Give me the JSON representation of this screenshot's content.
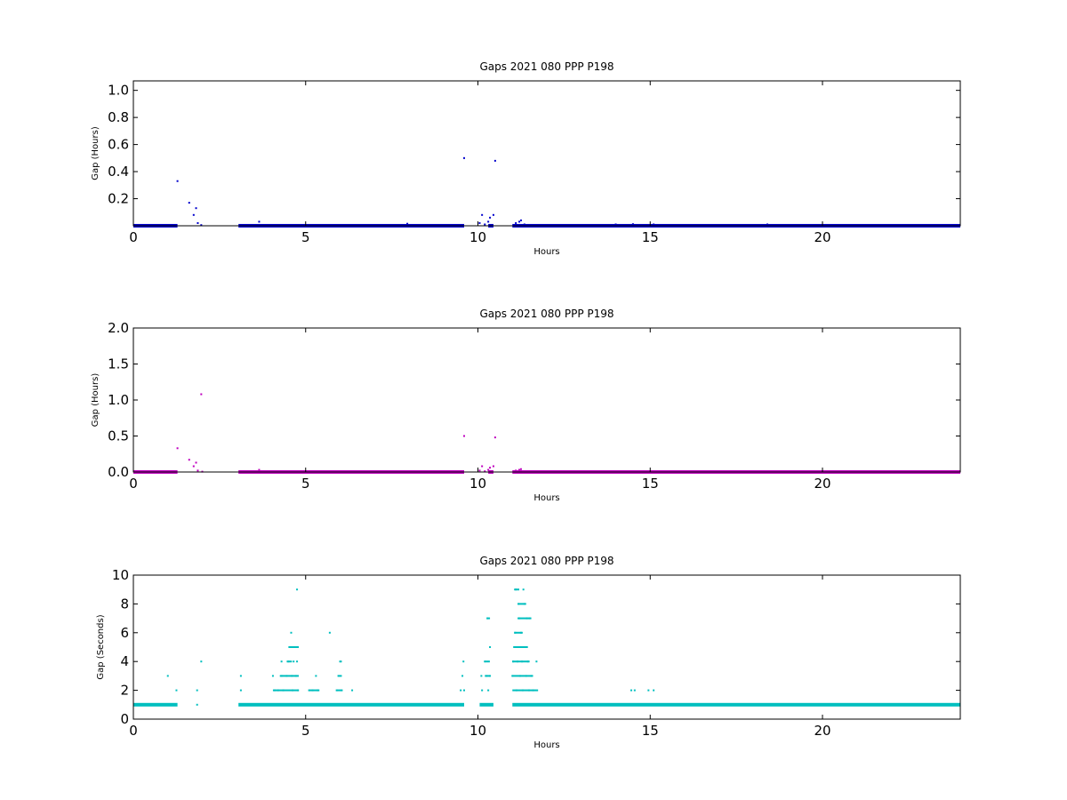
{
  "chart_data": [
    {
      "type": "scatter",
      "title": "Gaps 2021 080 PPP  P198",
      "xlabel": "Hours",
      "ylabel": "Gap (Hours)",
      "xlim": [
        0,
        24
      ],
      "ylim": [
        0,
        1.07
      ],
      "x_ticks": [
        "0",
        "5",
        "10",
        "15",
        "20"
      ],
      "y_ticks": [
        "0.2",
        "0.4",
        "0.6",
        "0.8",
        "1.0"
      ],
      "color": "#0000cc",
      "baseline_y": 0.0003,
      "baseline_segments": [
        [
          0,
          1.28
        ],
        [
          3.05,
          9.6
        ],
        [
          10.3,
          10.45
        ],
        [
          11.0,
          24
        ]
      ],
      "points": [
        {
          "x": 1.28,
          "y": 0.33
        },
        {
          "x": 1.62,
          "y": 0.17
        },
        {
          "x": 1.75,
          "y": 0.08
        },
        {
          "x": 1.82,
          "y": 0.13
        },
        {
          "x": 1.87,
          "y": 0.02
        },
        {
          "x": 1.97,
          "y": 0.005
        },
        {
          "x": 3.65,
          "y": 0.03
        },
        {
          "x": 7.95,
          "y": 0.015
        },
        {
          "x": 9.6,
          "y": 0.5
        },
        {
          "x": 10.05,
          "y": 0.02
        },
        {
          "x": 10.12,
          "y": 0.08
        },
        {
          "x": 10.2,
          "y": 0.01
        },
        {
          "x": 10.3,
          "y": 0.03
        },
        {
          "x": 10.35,
          "y": 0.06
        },
        {
          "x": 10.45,
          "y": 0.08
        },
        {
          "x": 10.5,
          "y": 0.48
        },
        {
          "x": 11.1,
          "y": 0.02
        },
        {
          "x": 11.2,
          "y": 0.03
        },
        {
          "x": 11.25,
          "y": 0.04
        },
        {
          "x": 11.35,
          "y": 0.01
        },
        {
          "x": 14.0,
          "y": 0.01
        },
        {
          "x": 14.5,
          "y": 0.012
        },
        {
          "x": 15.1,
          "y": 0.01
        },
        {
          "x": 18.4,
          "y": 0.01
        }
      ]
    },
    {
      "type": "scatter",
      "title": "Gaps 2021 080 PPP  P198",
      "xlabel": "Hours",
      "ylabel": "Gap (Hours)",
      "xlim": [
        0,
        24
      ],
      "ylim": [
        0,
        2.0
      ],
      "x_ticks": [
        "0",
        "5",
        "10",
        "15",
        "20"
      ],
      "y_ticks": [
        "0.0",
        "0.5",
        "1.0",
        "1.5",
        "2.0"
      ],
      "color": "#bf00bf",
      "baseline_y": 0.0003,
      "baseline_segments": [
        [
          0,
          1.28
        ],
        [
          3.05,
          9.6
        ],
        [
          10.3,
          10.45
        ],
        [
          11.0,
          24
        ]
      ],
      "points": [
        {
          "x": 1.28,
          "y": 0.33
        },
        {
          "x": 1.62,
          "y": 0.17
        },
        {
          "x": 1.75,
          "y": 0.08
        },
        {
          "x": 1.82,
          "y": 0.13
        },
        {
          "x": 1.87,
          "y": 0.02
        },
        {
          "x": 1.97,
          "y": 1.08
        },
        {
          "x": 2.0,
          "y": 0.005
        },
        {
          "x": 3.65,
          "y": 0.03
        },
        {
          "x": 9.6,
          "y": 0.5
        },
        {
          "x": 10.05,
          "y": 0.02
        },
        {
          "x": 10.12,
          "y": 0.08
        },
        {
          "x": 10.2,
          "y": 0.01
        },
        {
          "x": 10.3,
          "y": 0.03
        },
        {
          "x": 10.35,
          "y": 0.06
        },
        {
          "x": 10.45,
          "y": 0.08
        },
        {
          "x": 10.5,
          "y": 0.48
        },
        {
          "x": 11.1,
          "y": 0.02
        },
        {
          "x": 11.2,
          "y": 0.03
        },
        {
          "x": 11.25,
          "y": 0.04
        }
      ]
    },
    {
      "type": "scatter",
      "title": "Gaps 2021 080 PPP  P198",
      "xlabel": "Hours",
      "ylabel": "Gap (Seconds)",
      "xlim": [
        0,
        24
      ],
      "ylim": [
        0,
        10
      ],
      "x_ticks": [
        "0",
        "5",
        "10",
        "15",
        "20"
      ],
      "y_ticks": [
        "0",
        "2",
        "4",
        "6",
        "8",
        "10"
      ],
      "color": "#00bfbf",
      "baseline_y": 1,
      "baseline_segments": [
        [
          0,
          1.28
        ],
        [
          3.05,
          9.6
        ],
        [
          10.05,
          10.45
        ],
        [
          11.0,
          24
        ]
      ],
      "points": [
        {
          "x": 1.0,
          "y": 3
        },
        {
          "x": 1.25,
          "y": 2
        },
        {
          "x": 1.85,
          "y": 2
        },
        {
          "x": 1.85,
          "y": 1
        },
        {
          "x": 1.97,
          "y": 4
        },
        {
          "x": 3.12,
          "y": 3
        },
        {
          "x": 3.12,
          "y": 2
        },
        {
          "x": 4.05,
          "y": 3
        },
        {
          "x": 4.1,
          "y": 2
        },
        {
          "x": 4.2,
          "y": 2
        },
        {
          "x": 4.3,
          "y": 4
        },
        {
          "x": 4.3,
          "y": 3
        },
        {
          "x": 4.35,
          "y": 2
        },
        {
          "x": 4.45,
          "y": 3
        },
        {
          "x": 4.5,
          "y": 4
        },
        {
          "x": 4.55,
          "y": 5
        },
        {
          "x": 4.58,
          "y": 6
        },
        {
          "x": 4.6,
          "y": 3
        },
        {
          "x": 4.62,
          "y": 2
        },
        {
          "x": 4.65,
          "y": 4
        },
        {
          "x": 4.7,
          "y": 5
        },
        {
          "x": 4.72,
          "y": 3
        },
        {
          "x": 4.75,
          "y": 9
        },
        {
          "x": 4.75,
          "y": 4
        },
        {
          "x": 4.78,
          "y": 2
        },
        {
          "x": 5.1,
          "y": 2
        },
        {
          "x": 5.2,
          "y": 2
        },
        {
          "x": 5.3,
          "y": 3
        },
        {
          "x": 5.35,
          "y": 2
        },
        {
          "x": 5.7,
          "y": 6
        },
        {
          "x": 5.9,
          "y": 2
        },
        {
          "x": 5.95,
          "y": 3
        },
        {
          "x": 6.0,
          "y": 4
        },
        {
          "x": 6.05,
          "y": 2
        },
        {
          "x": 6.35,
          "y": 2
        },
        {
          "x": 9.5,
          "y": 2
        },
        {
          "x": 9.55,
          "y": 3
        },
        {
          "x": 9.58,
          "y": 4
        },
        {
          "x": 9.6,
          "y": 2
        },
        {
          "x": 10.1,
          "y": 3
        },
        {
          "x": 10.12,
          "y": 2
        },
        {
          "x": 10.2,
          "y": 4
        },
        {
          "x": 10.25,
          "y": 3
        },
        {
          "x": 10.28,
          "y": 7
        },
        {
          "x": 10.3,
          "y": 2
        },
        {
          "x": 10.32,
          "y": 4
        },
        {
          "x": 10.35,
          "y": 5
        },
        {
          "x": 10.35,
          "y": 3
        },
        {
          "x": 11.0,
          "y": 3
        },
        {
          "x": 11.02,
          "y": 4
        },
        {
          "x": 11.05,
          "y": 5
        },
        {
          "x": 11.08,
          "y": 6
        },
        {
          "x": 11.1,
          "y": 9
        },
        {
          "x": 11.12,
          "y": 2
        },
        {
          "x": 11.15,
          "y": 4
        },
        {
          "x": 11.18,
          "y": 8
        },
        {
          "x": 11.2,
          "y": 5
        },
        {
          "x": 11.2,
          "y": 7
        },
        {
          "x": 11.22,
          "y": 3
        },
        {
          "x": 11.25,
          "y": 6
        },
        {
          "x": 11.28,
          "y": 4
        },
        {
          "x": 11.3,
          "y": 2
        },
        {
          "x": 11.32,
          "y": 9
        },
        {
          "x": 11.35,
          "y": 8
        },
        {
          "x": 11.38,
          "y": 5
        },
        {
          "x": 11.4,
          "y": 3
        },
        {
          "x": 11.42,
          "y": 7
        },
        {
          "x": 11.45,
          "y": 4
        },
        {
          "x": 11.48,
          "y": 2
        },
        {
          "x": 11.5,
          "y": 7
        },
        {
          "x": 11.55,
          "y": 3
        },
        {
          "x": 11.6,
          "y": 2
        },
        {
          "x": 11.7,
          "y": 4
        },
        {
          "x": 11.72,
          "y": 2
        },
        {
          "x": 14.45,
          "y": 2
        },
        {
          "x": 14.55,
          "y": 2
        },
        {
          "x": 14.95,
          "y": 2
        },
        {
          "x": 15.1,
          "y": 2
        }
      ],
      "dense_rows": [
        {
          "y": 2,
          "from": 4.05,
          "to": 4.8
        },
        {
          "y": 3,
          "from": 4.25,
          "to": 4.8
        },
        {
          "y": 4,
          "from": 4.45,
          "to": 4.6
        },
        {
          "y": 5,
          "from": 4.5,
          "to": 4.8
        },
        {
          "y": 2,
          "from": 5.1,
          "to": 5.4
        },
        {
          "y": 2,
          "from": 5.9,
          "to": 6.05
        },
        {
          "y": 3,
          "from": 5.95,
          "to": 6.05
        },
        {
          "y": 4,
          "from": 6.0,
          "to": 6.05
        },
        {
          "y": 3,
          "from": 10.2,
          "to": 10.35
        },
        {
          "y": 4,
          "from": 10.2,
          "to": 10.3
        },
        {
          "y": 7,
          "from": 10.25,
          "to": 10.35
        },
        {
          "y": 2,
          "from": 11.0,
          "to": 11.7
        },
        {
          "y": 3,
          "from": 11.0,
          "to": 11.6
        },
        {
          "y": 4,
          "from": 11.0,
          "to": 11.5
        },
        {
          "y": 5,
          "from": 11.05,
          "to": 11.45
        },
        {
          "y": 6,
          "from": 11.05,
          "to": 11.3
        },
        {
          "y": 7,
          "from": 11.15,
          "to": 11.55
        },
        {
          "y": 8,
          "from": 11.15,
          "to": 11.4
        },
        {
          "y": 9,
          "from": 11.05,
          "to": 11.2
        }
      ]
    }
  ]
}
